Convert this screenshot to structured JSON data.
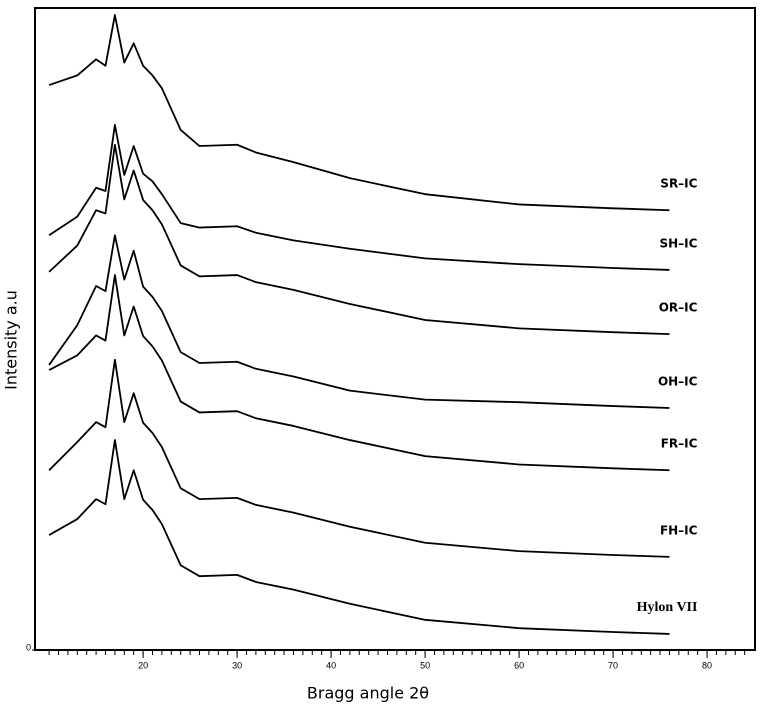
{
  "chart_data": {
    "type": "line",
    "xlabel": "Bragg angle 2θ",
    "ylabel": "Intensity a.u",
    "x": [
      10,
      13,
      15,
      16,
      17,
      18,
      19,
      20,
      21,
      22,
      24,
      26,
      30,
      32,
      36,
      42,
      50,
      60,
      70,
      76
    ],
    "series": [
      {
        "name": "SR–IC",
        "color": "#000000",
        "values": [
          88.0,
          89.5,
          92.0,
          91.0,
          98.9,
          91.5,
          94.5,
          91.0,
          89.5,
          87.5,
          81.0,
          78.5,
          78.7,
          77.5,
          76.0,
          73.5,
          71.0,
          69.4,
          68.8,
          68.5
        ]
      },
      {
        "name": "SH–IC",
        "color": "#000000",
        "values": [
          64.6,
          67.5,
          72.0,
          71.5,
          81.8,
          74.0,
          78.5,
          74.2,
          73.0,
          71.0,
          66.5,
          65.8,
          66.0,
          65.0,
          63.8,
          62.5,
          61.0,
          60.1,
          59.5,
          59.2
        ]
      },
      {
        "name": "OR–IC",
        "color": "#000000",
        "values": [
          58.9,
          63.0,
          68.5,
          68.0,
          78.7,
          70.2,
          74.7,
          70.1,
          68.5,
          66.3,
          59.9,
          58.2,
          58.4,
          57.3,
          56.1,
          53.9,
          51.4,
          50.1,
          49.5,
          49.2
        ]
      },
      {
        "name": "OH–IC",
        "color": "#000000",
        "values": [
          44.4,
          50.6,
          56.7,
          55.9,
          64.6,
          57.7,
          62.2,
          56.6,
          55.0,
          52.8,
          46.4,
          44.7,
          44.9,
          43.8,
          42.6,
          40.4,
          39.0,
          38.6,
          38.0,
          37.7
        ]
      },
      {
        "name": "FR–IC",
        "color": "#000000",
        "values": [
          43.6,
          45.9,
          49.0,
          48.2,
          58.4,
          49.0,
          53.5,
          48.9,
          47.3,
          45.1,
          38.7,
          37.0,
          37.2,
          36.1,
          34.9,
          32.7,
          30.2,
          28.9,
          28.3,
          28.0
        ]
      },
      {
        "name": "FH–IC",
        "color": "#000000",
        "values": [
          28.0,
          32.4,
          35.5,
          34.7,
          45.2,
          35.5,
          40.0,
          35.4,
          33.8,
          31.6,
          25.2,
          23.5,
          23.7,
          22.6,
          21.4,
          19.2,
          16.7,
          15.4,
          14.8,
          14.5
        ]
      },
      {
        "name": "Hylon VII",
        "color": "#000000",
        "values": [
          17.9,
          20.4,
          23.5,
          22.7,
          32.7,
          23.5,
          28.0,
          23.4,
          21.8,
          19.6,
          13.2,
          11.5,
          11.7,
          10.6,
          9.4,
          7.2,
          4.7,
          3.4,
          2.8,
          2.5
        ]
      }
    ],
    "xlim": [
      8.5,
      85.1
    ],
    "xticks": [
      20,
      30,
      40,
      50,
      60,
      70,
      80
    ],
    "xminorticks": [
      10,
      11,
      12,
      13,
      14,
      15,
      16,
      17,
      18,
      19,
      20,
      21,
      22,
      23,
      24,
      25,
      26,
      27,
      28,
      29,
      30,
      31,
      32,
      33,
      34,
      35,
      36,
      37,
      38,
      39,
      40,
      41,
      42,
      43,
      44,
      45,
      46,
      47,
      48,
      49,
      50,
      51,
      52,
      53,
      54,
      55,
      56,
      57,
      58,
      59,
      60,
      61,
      62,
      63,
      64,
      65,
      66,
      67,
      68,
      69,
      70,
      71,
      72,
      73,
      74,
      75,
      76,
      77,
      78,
      79,
      80,
      81,
      82,
      83,
      84
    ],
    "ylim": [
      0,
      100
    ],
    "yticks": [
      0
    ]
  }
}
